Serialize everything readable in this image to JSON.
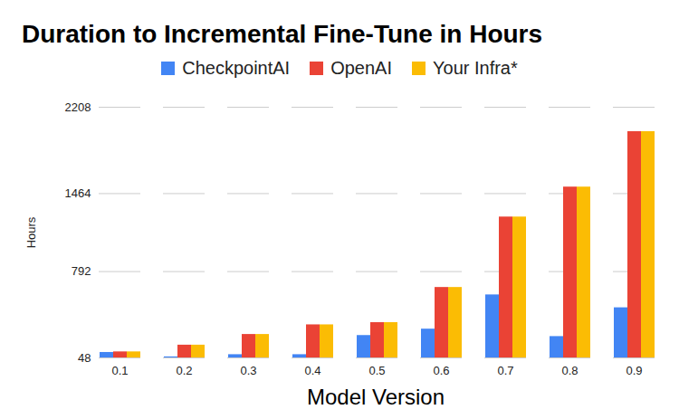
{
  "chart_data": {
    "type": "bar",
    "title": "Duration to Incremental Fine-Tune in Hours",
    "x_label": "Model Version",
    "y_label": "Hours",
    "categories": [
      "0.1",
      "0.2",
      "0.3",
      "0.4",
      "0.5",
      "0.6",
      "0.7",
      "0.8",
      "0.9"
    ],
    "series": [
      {
        "name": "CheckpointAI",
        "color": "#4285f4",
        "values": [
          95,
          57,
          76,
          76,
          241,
          296,
          591,
          232,
          480
        ]
      },
      {
        "name": "OpenAI",
        "color": "#ea4335",
        "values": [
          100,
          158,
          250,
          333,
          352,
          655,
          1262,
          1520,
          1998
        ]
      },
      {
        "name": "Your Infra*",
        "color": "#fbbc04",
        "values": [
          100,
          158,
          250,
          333,
          352,
          655,
          1262,
          1520,
          1998
        ]
      }
    ],
    "ylim": [
      48,
      2208
    ],
    "yticks": [
      48,
      792,
      1464,
      2208
    ],
    "grid": true,
    "legend": "top"
  }
}
